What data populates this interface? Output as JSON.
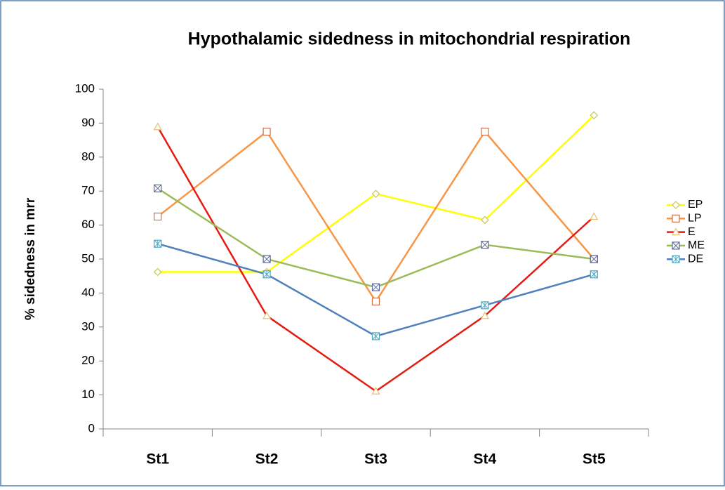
{
  "chart_data": {
    "type": "line",
    "title": "Hypothalamic sidedness in mitochondrial respiration",
    "y_label": "% sidedness in mrr",
    "categories": [
      "St1",
      "St2",
      "St3",
      "St4",
      "St5"
    ],
    "series": [
      {
        "name": "EP",
        "color": "#ffff00",
        "marker_color": "#c8c850",
        "marker": "diamond",
        "values": [
          46.2,
          46.2,
          69.2,
          61.5,
          92.3
        ]
      },
      {
        "name": "LP",
        "color": "#f79646",
        "marker_color": "#d0704a",
        "marker": "square",
        "values": [
          62.5,
          87.5,
          37.5,
          87.5,
          50
        ]
      },
      {
        "name": "E",
        "color": "#e41b13",
        "marker_color": "#e8c070",
        "marker": "triangle",
        "values": [
          88.9,
          33.3,
          11.1,
          33.3,
          62.5
        ]
      },
      {
        "name": "ME",
        "color": "#9bbb59",
        "marker_color": "#5a6a9a",
        "marker": "xsquare",
        "values": [
          70.8,
          50,
          41.7,
          54.2,
          50
        ]
      },
      {
        "name": "DE",
        "color": "#4f81bd",
        "marker_color": "#4aaac8",
        "marker": "starsquare",
        "values": [
          54.5,
          45.5,
          27.3,
          36.4,
          45.5
        ]
      }
    ],
    "ylim": [
      0,
      100
    ],
    "yticks": [
      0,
      10,
      20,
      30,
      40,
      50,
      60,
      70,
      80,
      90,
      100
    ],
    "grid": false,
    "legend": "right"
  }
}
